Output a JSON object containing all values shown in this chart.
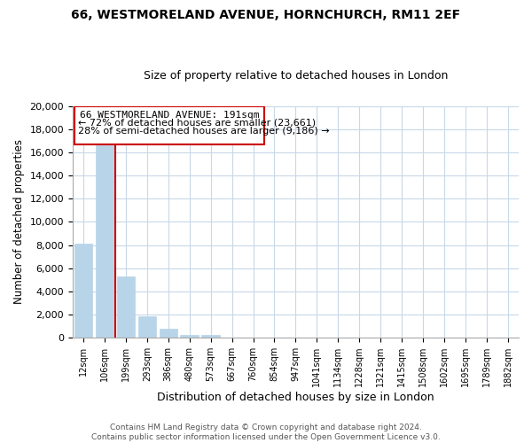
{
  "title1": "66, WESTMORELAND AVENUE, HORNCHURCH, RM11 2EF",
  "title2": "Size of property relative to detached houses in London",
  "xlabel": "Distribution of detached houses by size in London",
  "ylabel": "Number of detached properties",
  "bar_labels": [
    "12sqm",
    "106sqm",
    "199sqm",
    "293sqm",
    "386sqm",
    "480sqm",
    "573sqm",
    "667sqm",
    "760sqm",
    "854sqm",
    "947sqm",
    "1041sqm",
    "1134sqm",
    "1228sqm",
    "1321sqm",
    "1415sqm",
    "1508sqm",
    "1602sqm",
    "1695sqm",
    "1789sqm",
    "1882sqm"
  ],
  "bar_values": [
    8100,
    16600,
    5300,
    1850,
    800,
    280,
    270,
    0,
    0,
    0,
    0,
    0,
    0,
    0,
    0,
    0,
    0,
    0,
    0,
    0,
    0
  ],
  "bar_color": "#b8d4e8",
  "highlight_color": "#cc0000",
  "annotation_text_line1": "66 WESTMORELAND AVENUE: 191sqm",
  "annotation_text_line2": "← 72% of detached houses are smaller (23,661)",
  "annotation_text_line3": "28% of semi-detached houses are larger (9,186) →",
  "annotation_box_color": "#cc0000",
  "ylim": [
    0,
    20000
  ],
  "yticks": [
    0,
    2000,
    4000,
    6000,
    8000,
    10000,
    12000,
    14000,
    16000,
    18000,
    20000
  ],
  "footer_line1": "Contains HM Land Registry data © Crown copyright and database right 2024.",
  "footer_line2": "Contains public sector information licensed under the Open Government Licence v3.0.",
  "bg_color": "#ffffff",
  "grid_color": "#c8d8e8"
}
